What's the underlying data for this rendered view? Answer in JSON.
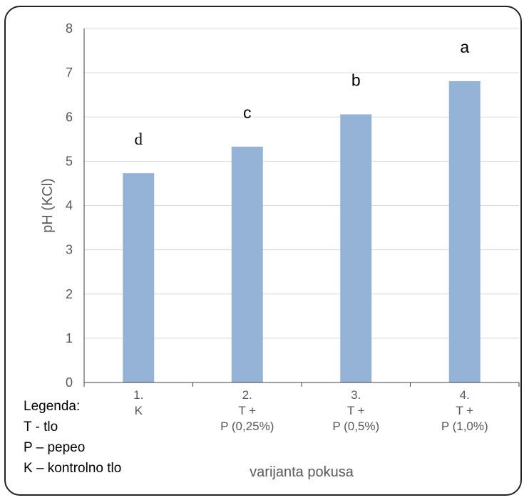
{
  "chart_data": {
    "type": "bar",
    "categories": [
      [
        "1.",
        "K"
      ],
      [
        "2.",
        "T +",
        "P (0,25%)"
      ],
      [
        "3.",
        "T +",
        "P (0,5%)"
      ],
      [
        "4.",
        "T +",
        "P (1,0%)"
      ]
    ],
    "values": [
      4.73,
      5.33,
      6.06,
      6.81
    ],
    "significance_letters": [
      "d",
      "c",
      "b",
      "a"
    ],
    "xlabel": "varijanta pokusa",
    "ylabel": "pH (KCl)",
    "ylim": [
      0,
      8
    ],
    "yticks": [
      0,
      1,
      2,
      3,
      4,
      5,
      6,
      7,
      8
    ],
    "grid": true,
    "bar_color": "#95b3d7"
  },
  "legend": {
    "title": "Legenda:",
    "items": [
      "T - tlo",
      "P – pepeo",
      "K – kontrolno tlo"
    ]
  }
}
